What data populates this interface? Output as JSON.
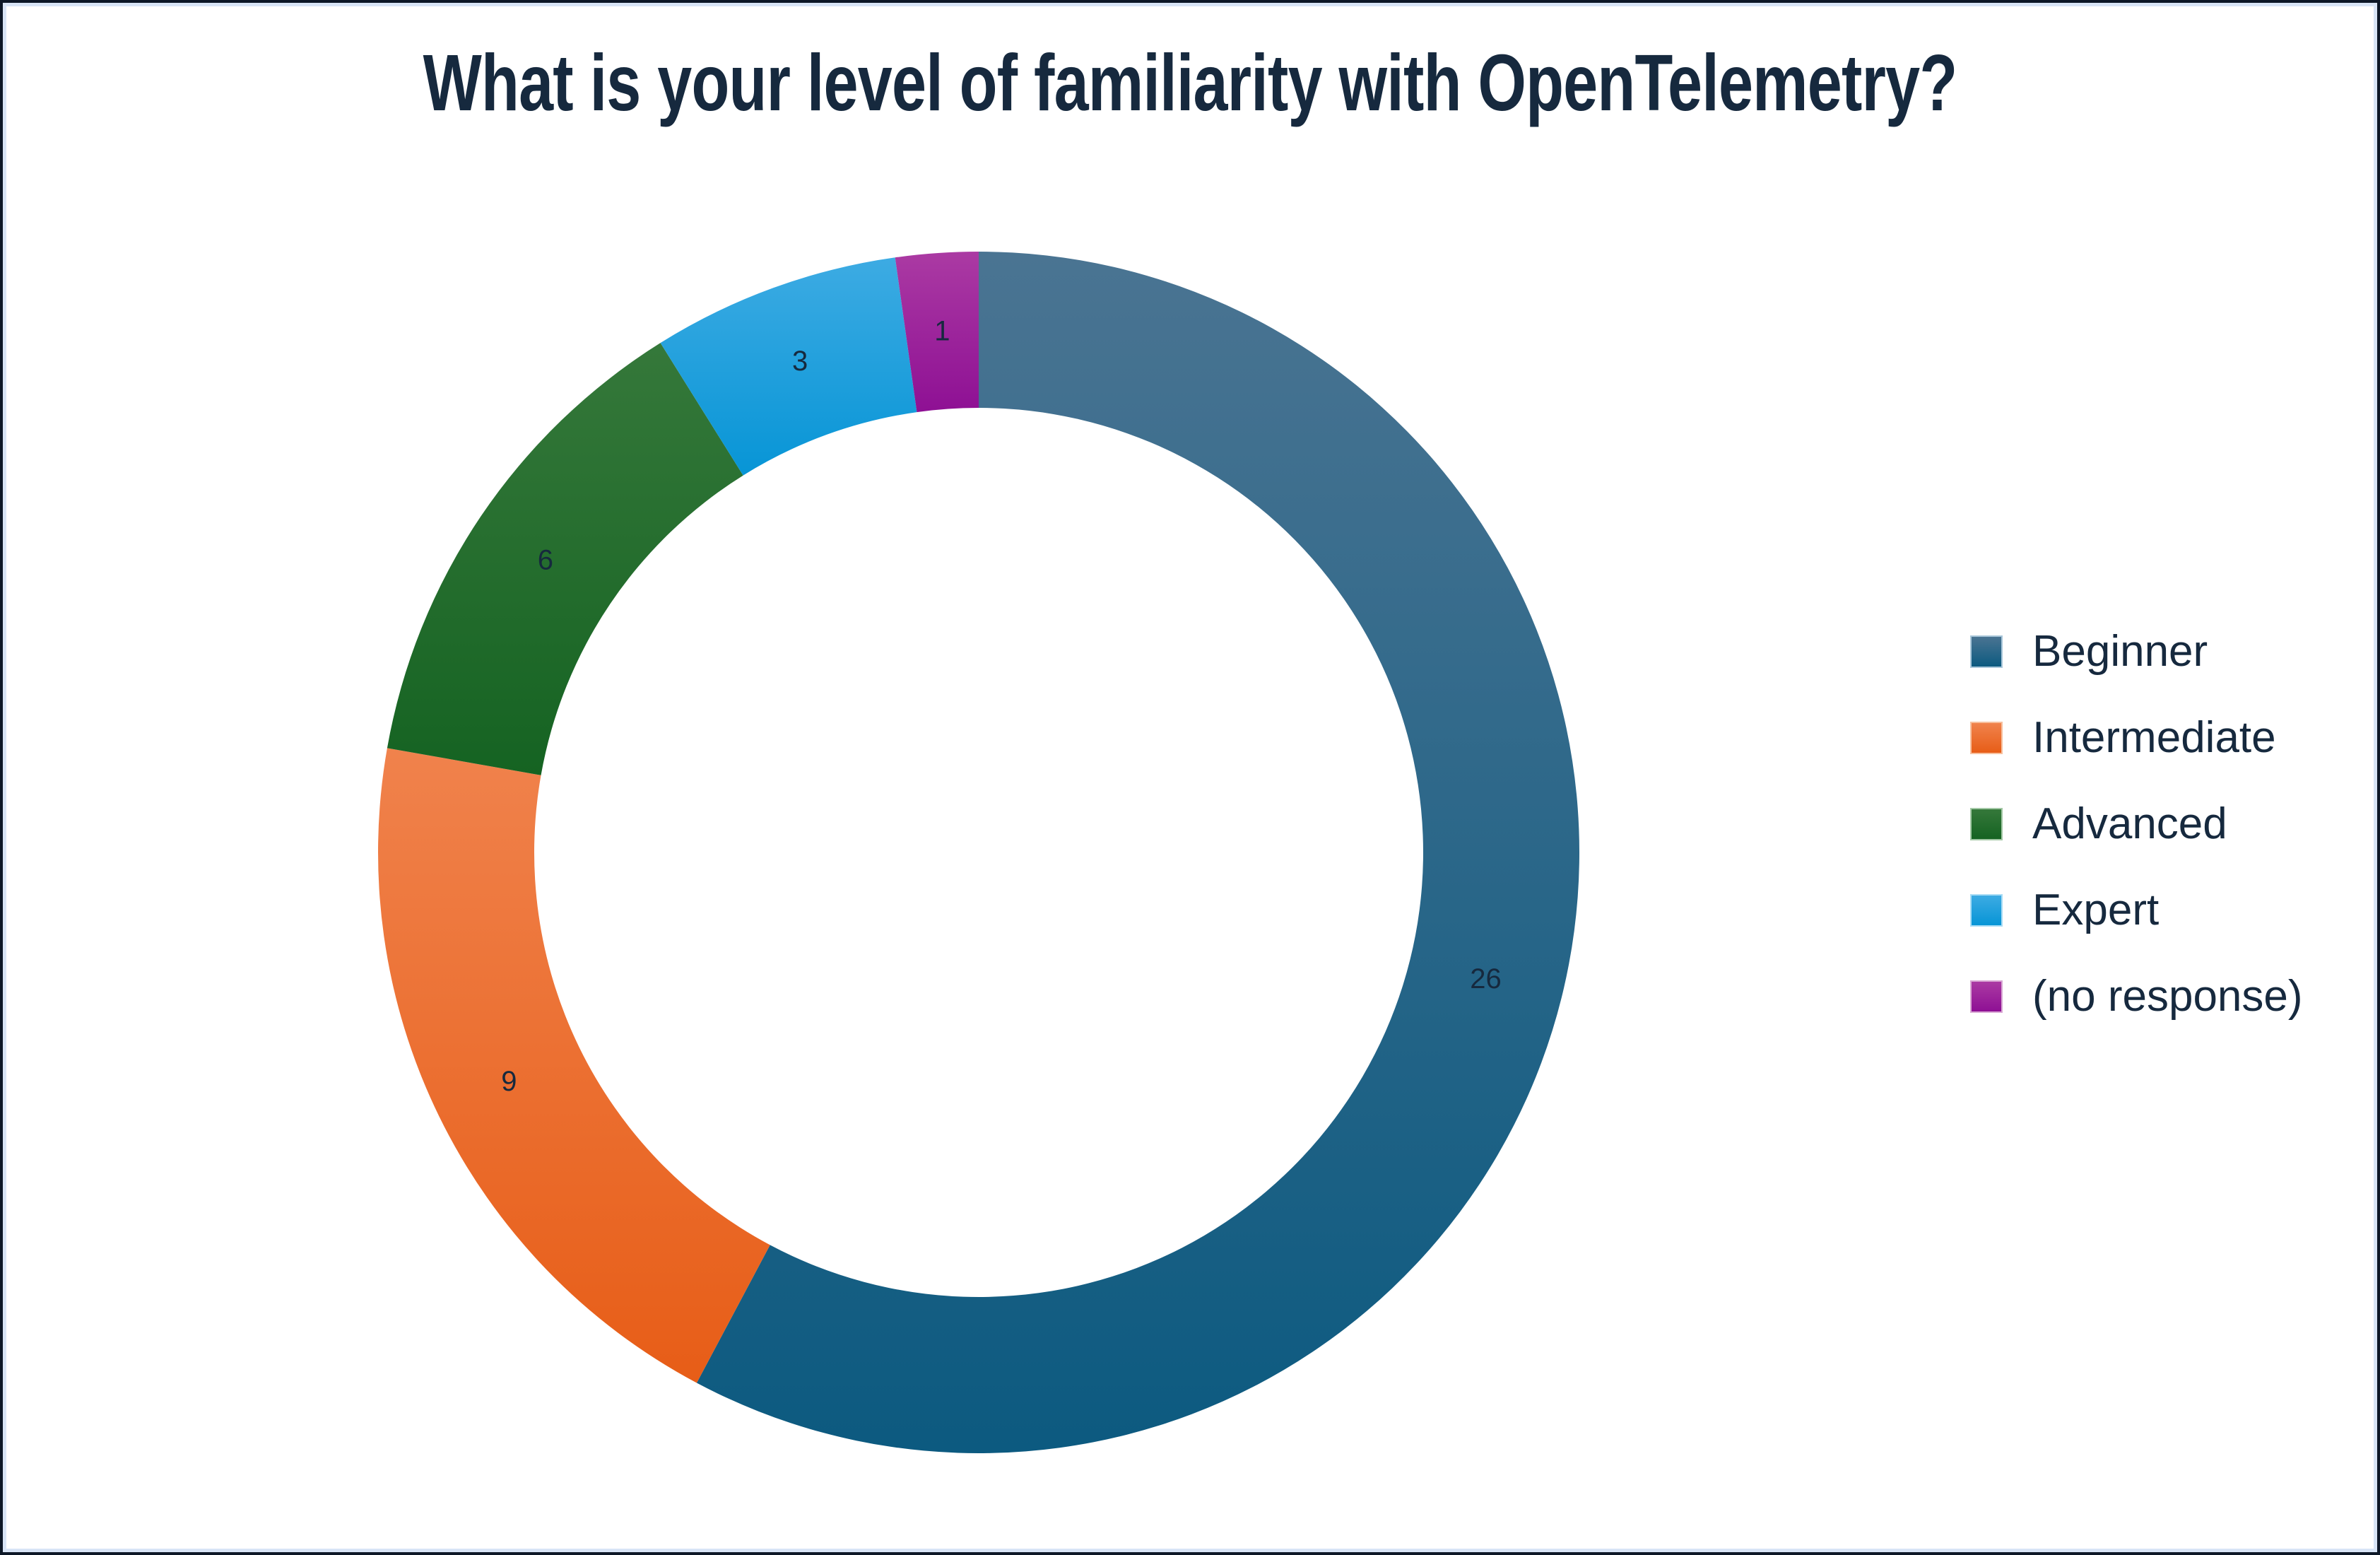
{
  "frame": {
    "outer_border_color": "#0d1727",
    "inner_border_color": "#d8e4f6"
  },
  "title": {
    "text": "What is your level of familiarity with OpenTelemetry?",
    "color": "#16293e"
  },
  "chart_data": {
    "type": "pie",
    "subtype": "donut",
    "title": "What is your level of familiarity with OpenTelemetry?",
    "categories": [
      "Beginner",
      "Intermediate",
      "Advanced",
      "Expert",
      "(no response)"
    ],
    "values": [
      26,
      9,
      6,
      3,
      1
    ],
    "data_labels": [
      "26",
      "9",
      "6",
      "3",
      "1"
    ],
    "start_angle_deg": 0,
    "direction": "clockwise",
    "donut_hole_ratio": 0.74,
    "label_color": "#16293e",
    "legend_position": "right",
    "grid": "off",
    "segments": [
      {
        "label": "Beginner",
        "value": 26,
        "color_top": "#4a7492",
        "color_bottom": "#0c5a80",
        "swatch_border": "#a9c7da"
      },
      {
        "label": "Intermediate",
        "value": 9,
        "color_top": "#f0824c",
        "color_bottom": "#e75d17",
        "swatch_border": "#f7c09e"
      },
      {
        "label": "Advanced",
        "value": 6,
        "color_top": "#35783a",
        "color_bottom": "#156322",
        "swatch_border": "#a3c8a5"
      },
      {
        "label": "Expert",
        "value": 3,
        "color_top": "#3dabe3",
        "color_bottom": "#0795d6",
        "swatch_border": "#a8dcf5"
      },
      {
        "label": "(no response)",
        "value": 1,
        "color_top": "#ab3aa3",
        "color_bottom": "#8e1094",
        "swatch_border": "#d9a8d4"
      }
    ]
  }
}
